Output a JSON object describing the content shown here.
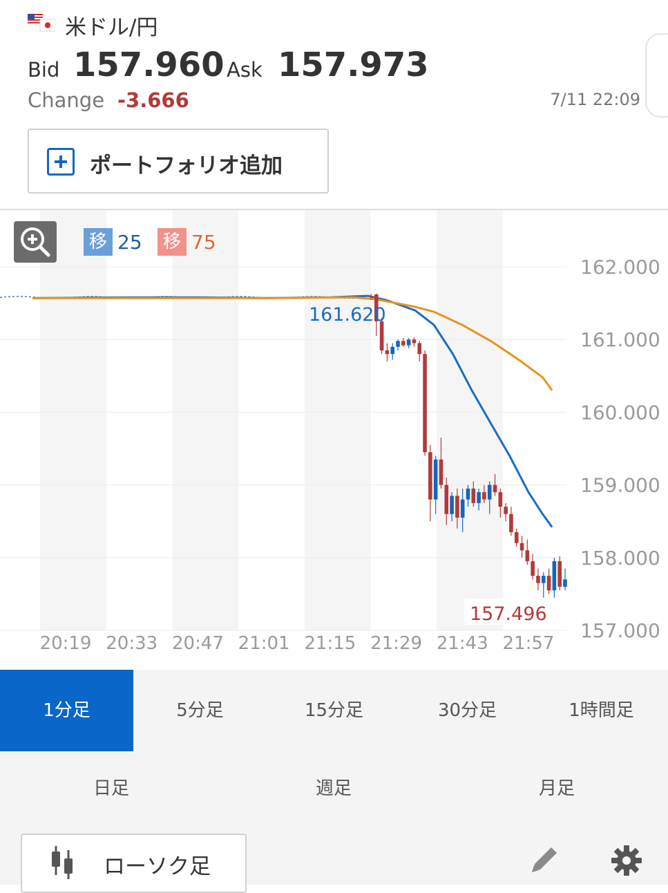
{
  "header": {
    "pair_title": "米ドル/円",
    "flag_icon": "us-jp-flag-icon",
    "bid_label": "Bid",
    "bid_value": "157.960",
    "ask_label": "Ask",
    "ask_value": "157.973",
    "change_label": "Change",
    "change_value": "-3.666",
    "timestamp": "7/11 22:09",
    "portfolio_button_label": "ポートフォリオ追加"
  },
  "colors": {
    "accent": "#0a66c8",
    "up_candle": "#1565c0",
    "down_candle": "#b23a3a",
    "ma25": "#1a6cc0",
    "ma75": "#e8921e",
    "negative": "#b23a3a"
  },
  "indicators": {
    "ma1_icon_text": "移",
    "ma1_period": "25",
    "ma2_icon_text": "移",
    "ma2_period": "75"
  },
  "chart_data": {
    "type": "candlestick",
    "ylim": [
      157.0,
      162.0
    ],
    "y_ticks": [
      "162.000",
      "161.000",
      "160.000",
      "159.000",
      "158.000",
      "157.000"
    ],
    "x_ticks": [
      "20:19",
      "20:33",
      "20:47",
      "21:01",
      "21:15",
      "21:29",
      "21:43",
      "21:57"
    ],
    "grid": true,
    "annotations": [
      {
        "text": "161.620",
        "color": "#1a6cc0"
      },
      {
        "text": "157.496",
        "color": "#b23a3a"
      }
    ],
    "candles": [
      {
        "o": 161.6,
        "h": 161.63,
        "l": 161.55,
        "c": 161.58
      },
      {
        "o": 161.62,
        "h": 161.63,
        "l": 161.05,
        "c": 161.25
      },
      {
        "o": 161.25,
        "h": 161.3,
        "l": 160.8,
        "c": 160.85
      },
      {
        "o": 160.85,
        "h": 160.95,
        "l": 160.7,
        "c": 160.8
      },
      {
        "o": 160.8,
        "h": 160.95,
        "l": 160.72,
        "c": 160.9
      },
      {
        "o": 160.9,
        "h": 161.0,
        "l": 160.85,
        "c": 160.98
      },
      {
        "o": 160.98,
        "h": 161.02,
        "l": 160.9,
        "c": 160.92
      },
      {
        "o": 160.92,
        "h": 161.02,
        "l": 160.88,
        "c": 161.0
      },
      {
        "o": 161.0,
        "h": 161.03,
        "l": 160.9,
        "c": 160.95
      },
      {
        "o": 160.95,
        "h": 160.98,
        "l": 160.7,
        "c": 160.8
      },
      {
        "o": 160.8,
        "h": 160.85,
        "l": 159.4,
        "c": 159.45
      },
      {
        "o": 159.45,
        "h": 159.55,
        "l": 158.5,
        "c": 158.8
      },
      {
        "o": 158.8,
        "h": 159.4,
        "l": 158.6,
        "c": 159.35
      },
      {
        "o": 159.35,
        "h": 159.65,
        "l": 158.95,
        "c": 159.0
      },
      {
        "o": 159.0,
        "h": 159.1,
        "l": 158.45,
        "c": 158.6
      },
      {
        "o": 158.6,
        "h": 158.9,
        "l": 158.5,
        "c": 158.85
      },
      {
        "o": 158.85,
        "h": 158.95,
        "l": 158.4,
        "c": 158.55
      },
      {
        "o": 158.55,
        "h": 158.95,
        "l": 158.35,
        "c": 158.8
      },
      {
        "o": 158.8,
        "h": 159.0,
        "l": 158.7,
        "c": 158.95
      },
      {
        "o": 158.95,
        "h": 159.05,
        "l": 158.7,
        "c": 158.75
      },
      {
        "o": 158.75,
        "h": 158.95,
        "l": 158.65,
        "c": 158.9
      },
      {
        "o": 158.9,
        "h": 159.0,
        "l": 158.75,
        "c": 158.8
      },
      {
        "o": 158.8,
        "h": 159.05,
        "l": 158.6,
        "c": 159.0
      },
      {
        "o": 159.0,
        "h": 159.15,
        "l": 158.85,
        "c": 158.9
      },
      {
        "o": 158.9,
        "h": 158.95,
        "l": 158.55,
        "c": 158.7
      },
      {
        "o": 158.7,
        "h": 158.75,
        "l": 158.5,
        "c": 158.6
      },
      {
        "o": 158.6,
        "h": 158.7,
        "l": 158.3,
        "c": 158.35
      },
      {
        "o": 158.35,
        "h": 158.4,
        "l": 158.15,
        "c": 158.2
      },
      {
        "o": 158.2,
        "h": 158.3,
        "l": 158.0,
        "c": 158.1
      },
      {
        "o": 158.1,
        "h": 158.25,
        "l": 157.9,
        "c": 157.95
      },
      {
        "o": 157.95,
        "h": 158.05,
        "l": 157.7,
        "c": 157.75
      },
      {
        "o": 157.75,
        "h": 157.85,
        "l": 157.55,
        "c": 157.65
      },
      {
        "o": 157.65,
        "h": 157.8,
        "l": 157.45,
        "c": 157.75
      },
      {
        "o": 157.75,
        "h": 157.85,
        "l": 157.5,
        "c": 157.55
      },
      {
        "o": 157.55,
        "h": 158.0,
        "l": 157.45,
        "c": 157.95
      },
      {
        "o": 157.95,
        "h": 158.02,
        "l": 157.55,
        "c": 157.6
      },
      {
        "o": 157.6,
        "h": 157.85,
        "l": 157.55,
        "c": 157.7
      }
    ],
    "series": [
      {
        "values": [
          {
            "t": "20:12",
            "y": 161.57
          },
          {
            "t": "20:33",
            "y": 161.58
          },
          {
            "t": "20:47",
            "y": 161.58
          },
          {
            "t": "21:01",
            "y": 161.57
          },
          {
            "t": "21:15",
            "y": 161.58
          },
          {
            "t": "21:23",
            "y": 161.6
          },
          {
            "t": "21:27",
            "y": 161.54
          },
          {
            "t": "21:33",
            "y": 161.4
          },
          {
            "t": "21:37",
            "y": 161.2
          },
          {
            "t": "21:41",
            "y": 160.8
          },
          {
            "t": "21:45",
            "y": 160.3
          },
          {
            "t": "21:49",
            "y": 159.85
          },
          {
            "t": "21:53",
            "y": 159.4
          },
          {
            "t": "21:57",
            "y": 158.9
          },
          {
            "t": "22:00",
            "y": 158.6
          },
          {
            "t": "22:02",
            "y": 158.42
          }
        ]
      },
      {
        "values": [
          {
            "t": "20:12",
            "y": 161.57
          },
          {
            "t": "21:01",
            "y": 161.57
          },
          {
            "t": "21:20",
            "y": 161.58
          },
          {
            "t": "21:25",
            "y": 161.55
          },
          {
            "t": "21:33",
            "y": 161.45
          },
          {
            "t": "21:37",
            "y": 161.38
          },
          {
            "t": "21:43",
            "y": 161.2
          },
          {
            "t": "21:49",
            "y": 160.98
          },
          {
            "t": "21:55",
            "y": 160.72
          },
          {
            "t": "22:00",
            "y": 160.48
          },
          {
            "t": "22:02",
            "y": 160.3
          }
        ]
      }
    ]
  },
  "timeframes": {
    "row1": [
      "1分足",
      "5分足",
      "15分足",
      "30分足",
      "1時間足"
    ],
    "row2": [
      "日足",
      "週足",
      "月足"
    ]
  },
  "bottom": {
    "chart_type_label": "ローソク足"
  }
}
